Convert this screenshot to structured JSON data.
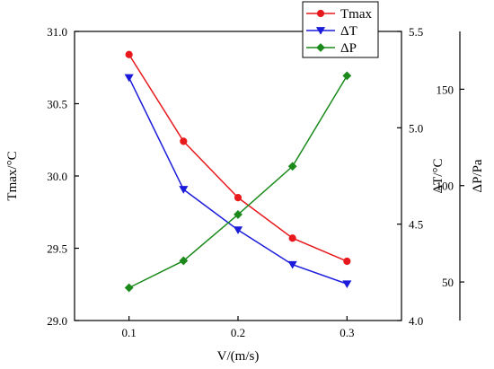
{
  "chart_data": {
    "type": "line",
    "x": [
      0.1,
      0.15,
      0.2,
      0.25,
      0.3
    ],
    "xlabel": "V/(m/s)",
    "xlim": [
      0.05,
      0.35
    ],
    "xticks": [
      "0.1",
      "0.2",
      "0.3"
    ],
    "legend_position": "top-right",
    "grid": false,
    "axes": {
      "left": {
        "label": "Tmax/°C",
        "range": [
          29.0,
          31.0
        ],
        "ticks": [
          "29.0",
          "29.5",
          "30.0",
          "30.5",
          "31.0"
        ]
      },
      "right_inner": {
        "label": "ΔT/°C",
        "range": [
          4.0,
          5.5
        ],
        "ticks": [
          "4.0",
          "4.5",
          "5.0",
          "5.5"
        ]
      },
      "right_outer": {
        "label": "ΔP/Pa",
        "range": [
          30,
          180
        ],
        "ticks": [
          "50",
          "100",
          "150"
        ]
      }
    },
    "series": [
      {
        "name": "Tmax",
        "axis": "left",
        "color": "#e8191d",
        "marker": "circle",
        "values": [
          30.84,
          30.24,
          29.85,
          29.57,
          29.41
        ]
      },
      {
        "name": "ΔT",
        "axis": "right_inner",
        "color": "#1b1bdb",
        "marker": "triangle-down",
        "values": [
          5.26,
          4.68,
          4.47,
          4.29,
          4.19
        ]
      },
      {
        "name": "ΔP",
        "axis": "right_outer",
        "color": "#1b8a1b",
        "marker": "diamond",
        "values": [
          47,
          61,
          85,
          110,
          157
        ]
      }
    ]
  }
}
